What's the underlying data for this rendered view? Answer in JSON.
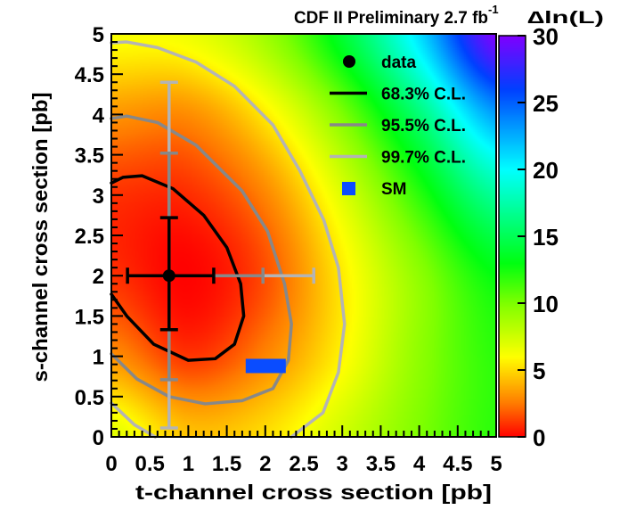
{
  "chart_data": {
    "type": "heatmap",
    "title": "CDF II Preliminary 2.7 fb",
    "title_superscript": "-1",
    "xlabel": "t-channel cross section [pb]",
    "ylabel": "s-channel cross section [pb]",
    "xlim": [
      0,
      5
    ],
    "ylim": [
      0,
      5
    ],
    "xticks": [
      "0",
      "0.5",
      "1",
      "1.5",
      "2",
      "2.5",
      "3",
      "3.5",
      "4",
      "4.5",
      "5"
    ],
    "yticks": [
      "0",
      "0.5",
      "1",
      "1.5",
      "2",
      "2.5",
      "3",
      "3.5",
      "4",
      "4.5",
      "5"
    ],
    "colorbar": {
      "label": "∆ln(L)",
      "range": [
        0,
        30
      ],
      "ticks": [
        "0",
        "5",
        "10",
        "15",
        "20",
        "25",
        "30"
      ],
      "stops": [
        [
          0,
          "#ff0000"
        ],
        [
          2.5,
          "#ff7a00"
        ],
        [
          6,
          "#ffff00"
        ],
        [
          10,
          "#7fff00"
        ],
        [
          13,
          "#00ff10"
        ],
        [
          20,
          "#00ffff"
        ],
        [
          26,
          "#0040ff"
        ],
        [
          30,
          "#8000ff"
        ]
      ]
    },
    "z_grid": {
      "t": [
        0,
        1,
        2,
        3,
        4,
        5
      ],
      "s": [
        0,
        1,
        2,
        3,
        4,
        5
      ],
      "values": [
        [
          7.0,
          4.5,
          5.2,
          7.5,
          10.0,
          12.0
        ],
        [
          3.1,
          1.1,
          2.8,
          5.8,
          9.5,
          12.0
        ],
        [
          1.0,
          0.05,
          1.6,
          5.5,
          9.5,
          13.0
        ],
        [
          1.0,
          0.9,
          2.8,
          7.0,
          12.0,
          17.0
        ],
        [
          3.2,
          3.0,
          5.5,
          10.0,
          16.0,
          23.0
        ],
        [
          6.2,
          6.5,
          9.0,
          14.0,
          21.0,
          30.0
        ]
      ]
    },
    "contours": [
      {
        "label": "68.3% C.L.",
        "color": "#000000",
        "segments": [
          [
            [
              0,
              1.77
            ],
            [
              0.2,
              1.5
            ],
            [
              0.55,
              1.15
            ],
            [
              1.0,
              0.95
            ],
            [
              1.35,
              0.97
            ],
            [
              1.6,
              1.15
            ],
            [
              1.72,
              1.5
            ],
            [
              1.68,
              1.9
            ],
            [
              1.5,
              2.35
            ],
            [
              1.2,
              2.75
            ],
            [
              0.8,
              3.08
            ],
            [
              0.4,
              3.24
            ],
            [
              0.15,
              3.22
            ],
            [
              0,
              3.15
            ]
          ]
        ]
      },
      {
        "label": "95.5% C.L.",
        "color": "#888888",
        "segments": [
          [
            [
              0,
              1.03
            ],
            [
              0.33,
              0.72
            ],
            [
              0.75,
              0.5
            ],
            [
              1.22,
              0.41
            ],
            [
              1.7,
              0.45
            ],
            [
              2.1,
              0.6
            ],
            [
              2.3,
              0.95
            ],
            [
              2.34,
              1.4
            ],
            [
              2.25,
              1.9
            ],
            [
              2.03,
              2.55
            ],
            [
              1.7,
              3.05
            ],
            [
              1.1,
              3.62
            ],
            [
              0.6,
              3.9
            ],
            [
              0.2,
              3.98
            ],
            [
              0,
              3.95
            ]
          ]
        ]
      },
      {
        "label": "99.7% C.L.",
        "color": "#b4b4b4",
        "segments": [
          [
            [
              0,
              0.42
            ],
            [
              0.3,
              0.15
            ],
            [
              0.57,
              0
            ]
          ],
          [
            [
              2.34,
              0
            ],
            [
              2.75,
              0.3
            ],
            [
              2.95,
              0.8
            ],
            [
              3.03,
              1.4
            ],
            [
              2.95,
              2.1
            ],
            [
              2.76,
              2.69
            ],
            [
              2.45,
              3.3
            ],
            [
              2.1,
              3.87
            ],
            [
              1.6,
              4.35
            ],
            [
              1.1,
              4.65
            ],
            [
              0.6,
              4.83
            ],
            [
              0.2,
              4.9
            ],
            [
              0,
              4.89
            ]
          ]
        ]
      }
    ],
    "data_point": {
      "t": 0.75,
      "s": 2.0,
      "error_bars": [
        {
          "level": "99.7% C.L.",
          "color": "#b4b4b4",
          "t": [
            0.75,
            2.63
          ],
          "s": [
            0.11,
            4.4
          ]
        },
        {
          "level": "95.5% C.L.",
          "color": "#888888",
          "t": [
            0.75,
            1.97
          ],
          "s": [
            0.71,
            3.52
          ]
        },
        {
          "level": "68.3% C.L.",
          "color": "#000000",
          "t": [
            0.21,
            1.33
          ],
          "s": [
            1.33,
            2.72
          ]
        }
      ]
    },
    "sm_point": {
      "t": 2.0,
      "s": 0.88,
      "color": "#0a4cff"
    },
    "legend": {
      "position": "top-right",
      "entries": [
        {
          "label": "data",
          "type": "marker",
          "color": "#000000"
        },
        {
          "label": "68.3% C.L.",
          "type": "line",
          "color": "#000000"
        },
        {
          "label": "95.5% C.L.",
          "type": "line",
          "color": "#888888"
        },
        {
          "label": "99.7% C.L.",
          "type": "line",
          "color": "#b4b4b4"
        },
        {
          "label": "SM",
          "type": "box",
          "color": "#0a4cff"
        }
      ]
    }
  }
}
